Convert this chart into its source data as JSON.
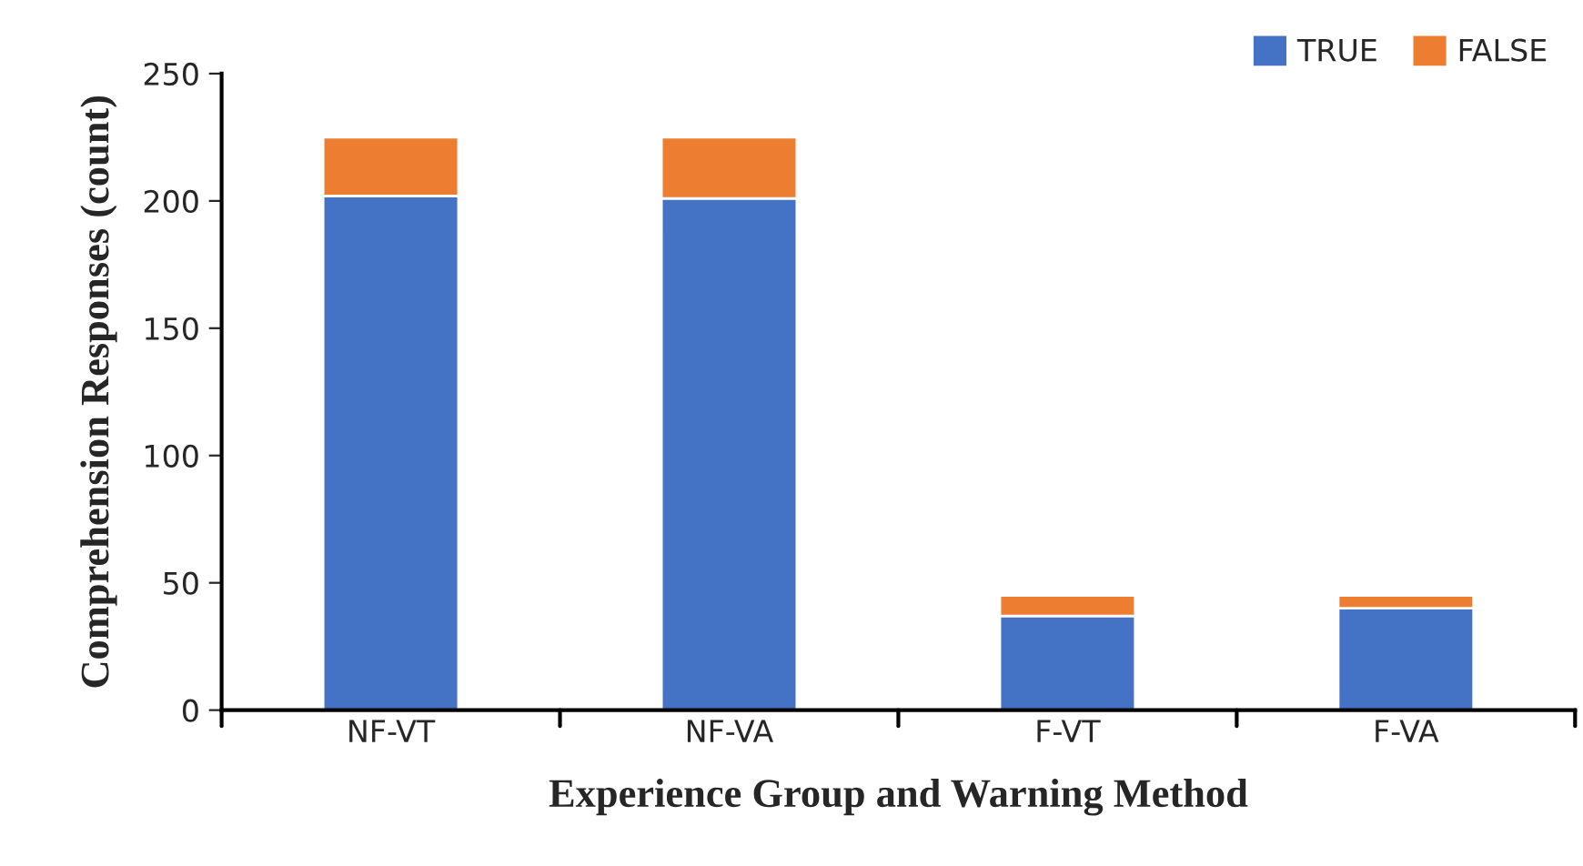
{
  "chart_data": {
    "type": "bar",
    "stacked": true,
    "xlabel": "Experience Group and Warning Method",
    "ylabel": "Comprehension Responses (count)",
    "categories": [
      "NF-VT",
      "NF-VA",
      "F-VT",
      "F-VA"
    ],
    "series": [
      {
        "name": "TRUE",
        "color": "#4472c4",
        "values": [
          202,
          201,
          37,
          40
        ]
      },
      {
        "name": "FALSE",
        "color": "#ed7d31",
        "values": [
          23,
          24,
          8,
          5
        ]
      }
    ],
    "ylim": [
      0,
      250
    ],
    "yticks": [
      0,
      50,
      100,
      150,
      200,
      250
    ],
    "grid": false,
    "legend": "top right"
  }
}
